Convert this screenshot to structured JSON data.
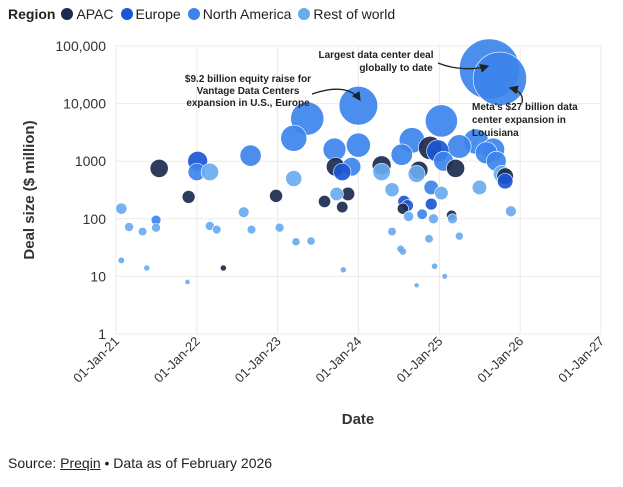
{
  "legend": {
    "title": "Region",
    "items": [
      {
        "label": "APAC",
        "color": "#1b2a4e"
      },
      {
        "label": "Europe",
        "color": "#1c56d6"
      },
      {
        "label": "North America",
        "color": "#3c84eb"
      },
      {
        "label": "Rest of world",
        "color": "#6aabf0"
      }
    ]
  },
  "source": {
    "prefix": "Source:",
    "name": "Preqin",
    "suffix": "• Data as of February 2026"
  },
  "chart_data": {
    "type": "scatter",
    "title": "",
    "xlabel": "Date",
    "ylabel": "Deal size ($ million)",
    "yscale": "log",
    "ylim": [
      1,
      100000
    ],
    "y_ticks": [
      1,
      10,
      100,
      1000,
      10000,
      100000
    ],
    "y_tick_labels": [
      "1",
      "10",
      "100",
      "1000",
      "10,000",
      "100,000"
    ],
    "xlim": [
      "2021-01-01",
      "2027-01-01"
    ],
    "x_ticks": [
      "2021-01-01",
      "2022-01-01",
      "2023-01-01",
      "2024-01-01",
      "2025-01-01",
      "2026-01-01",
      "2027-01-01"
    ],
    "x_tick_labels": [
      "01-Jan-21",
      "01-Jan-22",
      "01-Jan-23",
      "01-Jan-24",
      "01-Jan-25",
      "01-Jan-26",
      "01-Jan-27"
    ],
    "grid": true,
    "size_encoding": "deal size",
    "series": [
      {
        "name": "APAC",
        "points": [
          {
            "date": "2021-07-15",
            "value": 750
          },
          {
            "date": "2021-11-25",
            "value": 240
          },
          {
            "date": "2022-05-01",
            "value": 14
          },
          {
            "date": "2022-12-25",
            "value": 250
          },
          {
            "date": "2023-08-01",
            "value": 200
          },
          {
            "date": "2023-09-20",
            "value": 800
          },
          {
            "date": "2023-10-20",
            "value": 160
          },
          {
            "date": "2023-11-15",
            "value": 270
          },
          {
            "date": "2024-04-15",
            "value": 850
          },
          {
            "date": "2024-07-20",
            "value": 150
          },
          {
            "date": "2024-10-01",
            "value": 700
          },
          {
            "date": "2024-11-20",
            "value": 1700
          },
          {
            "date": "2025-02-25",
            "value": 115
          },
          {
            "date": "2025-03-15",
            "value": 750
          },
          {
            "date": "2025-10-25",
            "value": 550
          }
        ]
      },
      {
        "name": "Europe",
        "points": [
          {
            "date": "2022-01-05",
            "value": 1000
          },
          {
            "date": "2023-10-20",
            "value": 650
          },
          {
            "date": "2024-07-25",
            "value": 200
          },
          {
            "date": "2024-08-10",
            "value": 170
          },
          {
            "date": "2024-11-25",
            "value": 180
          },
          {
            "date": "2024-12-25",
            "value": 1500
          },
          {
            "date": "2025-10-25",
            "value": 450
          }
        ]
      },
      {
        "name": "North America",
        "points": [
          {
            "date": "2021-07-01",
            "value": 95
          },
          {
            "date": "2022-01-01",
            "value": 650
          },
          {
            "date": "2022-09-01",
            "value": 1250
          },
          {
            "date": "2023-03-15",
            "value": 2500
          },
          {
            "date": "2023-05-15",
            "value": 5500
          },
          {
            "date": "2023-09-15",
            "value": 1600
          },
          {
            "date": "2023-12-01",
            "value": 800
          },
          {
            "date": "2024-01-01",
            "value": 9200
          },
          {
            "date": "2024-01-01",
            "value": 1900
          },
          {
            "date": "2024-07-15",
            "value": 1300
          },
          {
            "date": "2024-08-30",
            "value": 2300
          },
          {
            "date": "2024-10-15",
            "value": 120
          },
          {
            "date": "2024-11-25",
            "value": 350
          },
          {
            "date": "2025-01-10",
            "value": 5000
          },
          {
            "date": "2025-01-20",
            "value": 1000
          },
          {
            "date": "2025-04-01",
            "value": 1800
          },
          {
            "date": "2025-06-15",
            "value": 2200
          },
          {
            "date": "2025-08-01",
            "value": 1400
          },
          {
            "date": "2025-09-01",
            "value": 1600
          },
          {
            "date": "2025-09-15",
            "value": 1000
          },
          {
            "date": "2025-10-01",
            "value": 27000
          },
          {
            "date": "2025-08-15",
            "value": 40000
          }
        ]
      },
      {
        "name": "Rest of world",
        "points": [
          {
            "date": "2021-01-25",
            "value": 150
          },
          {
            "date": "2021-01-25",
            "value": 19
          },
          {
            "date": "2021-03-01",
            "value": 72
          },
          {
            "date": "2021-05-01",
            "value": 60
          },
          {
            "date": "2021-05-20",
            "value": 14
          },
          {
            "date": "2021-07-01",
            "value": 70
          },
          {
            "date": "2021-11-20",
            "value": 8
          },
          {
            "date": "2022-03-01",
            "value": 650
          },
          {
            "date": "2022-03-01",
            "value": 75
          },
          {
            "date": "2022-04-01",
            "value": 65
          },
          {
            "date": "2022-08-01",
            "value": 130
          },
          {
            "date": "2022-09-05",
            "value": 65
          },
          {
            "date": "2023-01-10",
            "value": 70
          },
          {
            "date": "2023-03-15",
            "value": 500
          },
          {
            "date": "2023-03-25",
            "value": 40
          },
          {
            "date": "2023-06-01",
            "value": 41
          },
          {
            "date": "2023-09-25",
            "value": 270
          },
          {
            "date": "2023-10-25",
            "value": 13
          },
          {
            "date": "2024-04-15",
            "value": 650
          },
          {
            "date": "2024-06-01",
            "value": 320
          },
          {
            "date": "2024-06-01",
            "value": 60
          },
          {
            "date": "2024-07-10",
            "value": 30
          },
          {
            "date": "2024-07-20",
            "value": 27
          },
          {
            "date": "2024-08-15",
            "value": 110
          },
          {
            "date": "2024-09-20",
            "value": 7
          },
          {
            "date": "2024-09-20",
            "value": 600
          },
          {
            "date": "2024-11-15",
            "value": 45
          },
          {
            "date": "2024-12-05",
            "value": 100
          },
          {
            "date": "2024-12-10",
            "value": 15
          },
          {
            "date": "2025-01-10",
            "value": 280
          },
          {
            "date": "2025-01-25",
            "value": 10
          },
          {
            "date": "2025-03-01",
            "value": 100
          },
          {
            "date": "2025-04-01",
            "value": 50
          },
          {
            "date": "2025-07-01",
            "value": 350
          },
          {
            "date": "2025-10-10",
            "value": 600
          },
          {
            "date": "2025-11-20",
            "value": 135
          }
        ]
      }
    ],
    "annotations": [
      {
        "text": "$9.2 billion equity raise for Vantage Data Centers expansion in U.S., Europe",
        "date": "2024-01-01",
        "value": 9200
      },
      {
        "text": "Largest data center deal globally to date",
        "date": "2025-08-15",
        "value": 40000
      },
      {
        "text": "Meta's $27 billion data center expansion in Louisiana",
        "date": "2025-10-01",
        "value": 27000
      }
    ]
  }
}
